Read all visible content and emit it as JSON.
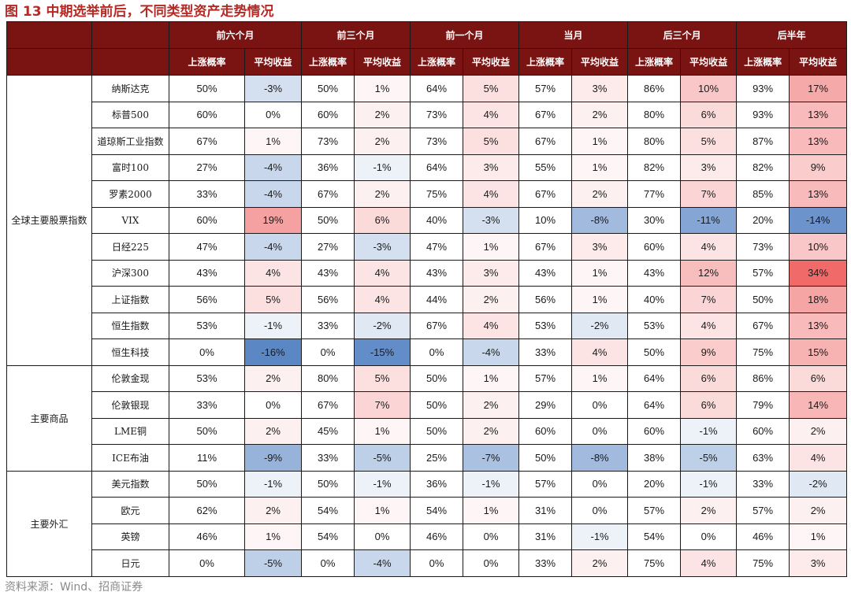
{
  "title": "图 13 中期选举前后，不同类型资产走势情况",
  "source": "资料来源：Wind、招商证券",
  "colors": {
    "header_bg": "#7a1412",
    "title_text": "#b52a24",
    "positive_max": "#f06a6a",
    "negative_max": "#5b87c5",
    "neutral": "#ffffff"
  },
  "chart_data": {
    "type": "table",
    "periods": [
      "前六个月",
      "前三个月",
      "前一个月",
      "当月",
      "后三个月",
      "后半年"
    ],
    "metrics": [
      "上涨概率",
      "平均收益"
    ],
    "groups": [
      {
        "name": "全球主要股票指数",
        "rows": [
          {
            "asset": "纳斯达克",
            "values": [
              "50%",
              "-3%",
              "50%",
              "1%",
              "64%",
              "5%",
              "57%",
              "3%",
              "86%",
              "10%",
              "93%",
              "17%"
            ]
          },
          {
            "asset": "标普500",
            "values": [
              "60%",
              "0%",
              "60%",
              "2%",
              "73%",
              "4%",
              "67%",
              "2%",
              "80%",
              "6%",
              "93%",
              "13%"
            ]
          },
          {
            "asset": "道琼斯工业指数",
            "values": [
              "67%",
              "1%",
              "73%",
              "2%",
              "73%",
              "5%",
              "67%",
              "1%",
              "80%",
              "5%",
              "87%",
              "13%"
            ]
          },
          {
            "asset": "富时100",
            "values": [
              "27%",
              "-4%",
              "36%",
              "-1%",
              "64%",
              "3%",
              "55%",
              "1%",
              "82%",
              "3%",
              "82%",
              "9%"
            ]
          },
          {
            "asset": "罗素2000",
            "values": [
              "33%",
              "-4%",
              "67%",
              "2%",
              "75%",
              "4%",
              "67%",
              "2%",
              "77%",
              "7%",
              "85%",
              "13%"
            ]
          },
          {
            "asset": "VIX",
            "values": [
              "60%",
              "19%",
              "50%",
              "6%",
              "40%",
              "-3%",
              "10%",
              "-8%",
              "30%",
              "-11%",
              "20%",
              "-14%"
            ]
          },
          {
            "asset": "日经225",
            "values": [
              "47%",
              "-4%",
              "27%",
              "-3%",
              "47%",
              "1%",
              "67%",
              "3%",
              "60%",
              "4%",
              "73%",
              "10%"
            ]
          },
          {
            "asset": "沪深300",
            "values": [
              "43%",
              "4%",
              "43%",
              "4%",
              "43%",
              "3%",
              "43%",
              "1%",
              "43%",
              "12%",
              "57%",
              "34%"
            ]
          },
          {
            "asset": "上证指数",
            "values": [
              "56%",
              "5%",
              "56%",
              "4%",
              "44%",
              "2%",
              "56%",
              "1%",
              "40%",
              "7%",
              "50%",
              "18%"
            ]
          },
          {
            "asset": "恒生指数",
            "values": [
              "53%",
              "-1%",
              "33%",
              "-2%",
              "67%",
              "4%",
              "53%",
              "-2%",
              "53%",
              "4%",
              "67%",
              "13%"
            ]
          },
          {
            "asset": "恒生科技",
            "values": [
              "0%",
              "-16%",
              "0%",
              "-15%",
              "0%",
              "-4%",
              "33%",
              "4%",
              "50%",
              "9%",
              "75%",
              "15%"
            ]
          }
        ]
      },
      {
        "name": "主要商品",
        "rows": [
          {
            "asset": "伦敦金现",
            "values": [
              "53%",
              "2%",
              "80%",
              "5%",
              "50%",
              "1%",
              "57%",
              "1%",
              "64%",
              "6%",
              "86%",
              "6%"
            ]
          },
          {
            "asset": "伦敦银现",
            "values": [
              "33%",
              "0%",
              "67%",
              "7%",
              "50%",
              "2%",
              "29%",
              "0%",
              "64%",
              "6%",
              "79%",
              "14%"
            ]
          },
          {
            "asset": "LME铜",
            "values": [
              "50%",
              "2%",
              "45%",
              "1%",
              "50%",
              "2%",
              "60%",
              "0%",
              "60%",
              "-1%",
              "60%",
              "2%"
            ]
          },
          {
            "asset": "ICE布油",
            "values": [
              "11%",
              "-9%",
              "33%",
              "-5%",
              "25%",
              "-7%",
              "50%",
              "-8%",
              "38%",
              "-5%",
              "63%",
              "4%"
            ]
          }
        ]
      },
      {
        "name": "主要外汇",
        "rows": [
          {
            "asset": "美元指数",
            "values": [
              "50%",
              "-1%",
              "50%",
              "-1%",
              "36%",
              "-1%",
              "57%",
              "0%",
              "20%",
              "-1%",
              "33%",
              "-2%"
            ]
          },
          {
            "asset": "欧元",
            "values": [
              "62%",
              "2%",
              "54%",
              "1%",
              "54%",
              "1%",
              "31%",
              "0%",
              "57%",
              "2%",
              "57%",
              "2%"
            ]
          },
          {
            "asset": "英镑",
            "values": [
              "46%",
              "1%",
              "54%",
              "0%",
              "46%",
              "0%",
              "31%",
              "-1%",
              "54%",
              "0%",
              "46%",
              "1%"
            ]
          },
          {
            "asset": "日元",
            "values": [
              "0%",
              "-5%",
              "0%",
              "-4%",
              "0%",
              "0%",
              "33%",
              "2%",
              "75%",
              "4%",
              "75%",
              "3%"
            ]
          }
        ]
      }
    ]
  }
}
